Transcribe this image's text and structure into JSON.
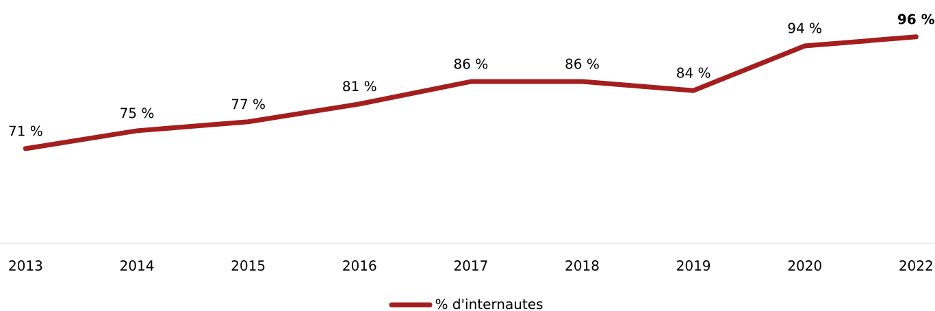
{
  "chart_data": {
    "type": "line",
    "categories": [
      "2013",
      "2014",
      "2015",
      "2016",
      "2017",
      "2018",
      "2019",
      "2020",
      "2022"
    ],
    "series": [
      {
        "name": "% d'internautes",
        "color": "#a51e1e",
        "values": [
          71,
          75,
          77,
          81,
          86,
          86,
          84,
          94,
          96
        ],
        "value_labels": [
          "71 %",
          "75 %",
          "77 %",
          "81 %",
          "86 %",
          "86 %",
          "84 %",
          "94 %",
          "**96 %**"
        ]
      }
    ],
    "legend": "bottom",
    "grid": false,
    "marker": "none",
    "line_style": "solid"
  }
}
